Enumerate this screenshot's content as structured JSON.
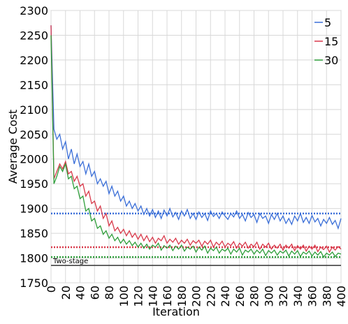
{
  "chart_data": {
    "type": "line",
    "xlabel": "Iteration",
    "ylabel": "Average Cost",
    "xlim": [
      0,
      400
    ],
    "ylim": [
      1750,
      2300
    ],
    "xticks": [
      0,
      20,
      40,
      60,
      80,
      100,
      120,
      140,
      160,
      180,
      200,
      220,
      240,
      260,
      280,
      300,
      320,
      340,
      360,
      380,
      400
    ],
    "yticks": [
      1750,
      1800,
      1850,
      1900,
      1950,
      2000,
      2050,
      2100,
      2150,
      2200,
      2250,
      2300
    ],
    "grid": true,
    "legend": "upper right",
    "x": [
      0,
      4,
      8,
      12,
      16,
      20,
      24,
      28,
      32,
      36,
      40,
      44,
      48,
      52,
      56,
      60,
      64,
      68,
      72,
      76,
      80,
      84,
      88,
      92,
      96,
      100,
      104,
      108,
      112,
      116,
      120,
      124,
      128,
      132,
      136,
      140,
      144,
      148,
      152,
      156,
      160,
      164,
      168,
      172,
      176,
      180,
      184,
      188,
      192,
      196,
      200,
      204,
      208,
      212,
      216,
      220,
      224,
      228,
      232,
      236,
      240,
      244,
      248,
      252,
      256,
      260,
      264,
      268,
      272,
      276,
      280,
      284,
      288,
      292,
      296,
      300,
      304,
      308,
      312,
      316,
      320,
      324,
      328,
      332,
      336,
      340,
      344,
      348,
      352,
      356,
      360,
      364,
      368,
      372,
      376,
      380,
      384,
      388,
      392,
      396,
      400
    ],
    "series": [
      {
        "name": "5",
        "color": "#3b6fd8",
        "values": [
          2270,
          2060,
          2040,
          2050,
          2020,
          2035,
          2000,
          2020,
          1990,
          2010,
          1985,
          1995,
          1970,
          1990,
          1965,
          1975,
          1950,
          1960,
          1945,
          1955,
          1930,
          1945,
          1925,
          1935,
          1915,
          1925,
          1905,
          1915,
          1900,
          1910,
          1895,
          1905,
          1888,
          1900,
          1885,
          1898,
          1882,
          1895,
          1880,
          1897,
          1885,
          1900,
          1883,
          1892,
          1878,
          1895,
          1885,
          1898,
          1880,
          1890,
          1878,
          1893,
          1882,
          1890,
          1876,
          1895,
          1884,
          1890,
          1880,
          1893,
          1885,
          1878,
          1890,
          1883,
          1895,
          1880,
          1888,
          1875,
          1892,
          1882,
          1888,
          1872,
          1890,
          1880,
          1885,
          1870,
          1888,
          1878,
          1890,
          1875,
          1885,
          1870,
          1880,
          1868,
          1885,
          1875,
          1890,
          1872,
          1882,
          1870,
          1886,
          1873,
          1880,
          1865,
          1878,
          1870,
          1882,
          1868,
          1876,
          1860,
          1880
        ]
      },
      {
        "name": "15",
        "color": "#d8394a",
        "values": [
          2270,
          1960,
          1975,
          1990,
          1980,
          1995,
          1970,
          1975,
          1955,
          1965,
          1945,
          1950,
          1925,
          1935,
          1910,
          1915,
          1895,
          1905,
          1880,
          1890,
          1865,
          1875,
          1855,
          1862,
          1850,
          1858,
          1845,
          1855,
          1842,
          1850,
          1838,
          1848,
          1835,
          1845,
          1833,
          1842,
          1830,
          1840,
          1835,
          1845,
          1830,
          1838,
          1832,
          1840,
          1828,
          1836,
          1830,
          1838,
          1826,
          1835,
          1830,
          1836,
          1824,
          1834,
          1828,
          1836,
          1822,
          1832,
          1826,
          1834,
          1822,
          1830,
          1825,
          1833,
          1820,
          1830,
          1824,
          1832,
          1820,
          1828,
          1823,
          1832,
          1818,
          1828,
          1822,
          1830,
          1818,
          1826,
          1820,
          1828,
          1816,
          1826,
          1820,
          1828,
          1815,
          1825,
          1818,
          1826,
          1814,
          1824,
          1818,
          1826,
          1813,
          1822,
          1817,
          1824,
          1812,
          1822,
          1816,
          1823,
          1818
        ]
      },
      {
        "name": "30",
        "color": "#2e9e3a",
        "values": [
          2250,
          1950,
          1965,
          1985,
          1975,
          1990,
          1960,
          1965,
          1940,
          1945,
          1920,
          1925,
          1895,
          1900,
          1875,
          1880,
          1860,
          1865,
          1848,
          1855,
          1840,
          1848,
          1835,
          1842,
          1830,
          1838,
          1828,
          1835,
          1825,
          1832,
          1822,
          1830,
          1820,
          1828,
          1818,
          1826,
          1822,
          1830,
          1816,
          1825,
          1820,
          1826,
          1815,
          1824,
          1818,
          1826,
          1814,
          1822,
          1818,
          1824,
          1812,
          1822,
          1816,
          1824,
          1810,
          1820,
          1815,
          1822,
          1810,
          1818,
          1814,
          1820,
          1808,
          1818,
          1812,
          1820,
          1806,
          1816,
          1812,
          1818,
          1808,
          1816,
          1810,
          1818,
          1805,
          1815,
          1810,
          1816,
          1806,
          1814,
          1810,
          1816,
          1804,
          1814,
          1808,
          1815,
          1803,
          1812,
          1808,
          1814,
          1804,
          1812,
          1806,
          1813,
          1802,
          1810,
          1806,
          1812,
          1803,
          1810,
          1808
        ]
      }
    ],
    "hlines": [
      {
        "value": 1890,
        "color": "#3b6fd8",
        "style": "dotted"
      },
      {
        "value": 1822,
        "color": "#d8394a",
        "style": "dotted"
      },
      {
        "value": 1802,
        "color": "#2e9e3a",
        "style": "dotted"
      },
      {
        "value": 1785,
        "color": "#333333",
        "style": "solid",
        "label": "Two-stage"
      }
    ]
  }
}
